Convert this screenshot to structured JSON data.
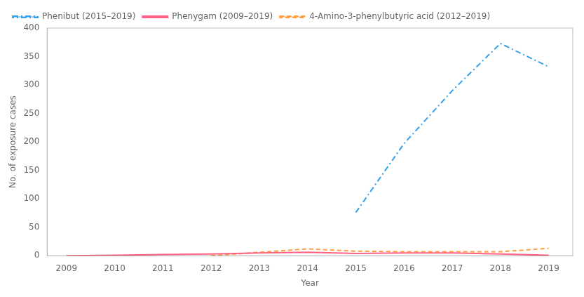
{
  "chart_data": {
    "type": "line",
    "xlabel": "Year",
    "ylabel": "No. of exposure cases",
    "series": [
      {
        "name": "Phenibut (2015–2019)",
        "line_style": "dashdot",
        "x": [
          2015,
          2016,
          2017,
          2018,
          2019
        ],
        "values": [
          76,
          197,
          290,
          373,
          332
        ]
      },
      {
        "name": "Phenygam (2009–2019)",
        "line_style": "solid",
        "x": [
          2009,
          2010,
          2011,
          2012,
          2013,
          2014,
          2015,
          2016,
          2017,
          2018,
          2019
        ],
        "values": [
          0,
          1,
          2,
          3,
          5,
          6,
          4,
          5,
          5,
          3,
          1
        ]
      },
      {
        "name": "4-Amino-3-phenylbutyric acid (2012–2019)",
        "line_style": "dashed",
        "x": [
          2012,
          2013,
          2014,
          2015,
          2016,
          2017,
          2018,
          2019
        ],
        "values": [
          0,
          6,
          12,
          8,
          7,
          7,
          7,
          13
        ]
      }
    ],
    "xlim": [
      2008.6,
      2019.5
    ],
    "xticks": [
      2009,
      2010,
      2011,
      2012,
      2013,
      2014,
      2015,
      2016,
      2017,
      2018,
      2019
    ],
    "ylim": [
      0,
      400
    ],
    "yticks": [
      0,
      50,
      100,
      150,
      200,
      250,
      300,
      350,
      400
    ],
    "legend": "upper left",
    "grid": false
  }
}
